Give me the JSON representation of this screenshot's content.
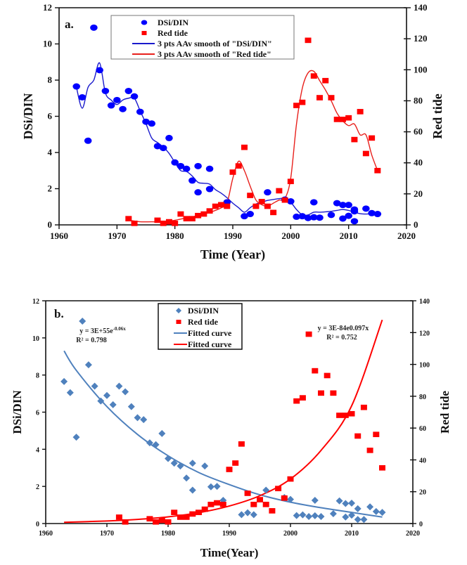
{
  "chart_data": [
    {
      "type": "scatter",
      "panel_label": "a.",
      "title": "",
      "xlabel": "Time (Year)",
      "ylabel": "DSi/DIN",
      "y2label": "Red tide",
      "xlim": [
        1960,
        2020
      ],
      "ylim": [
        0,
        12
      ],
      "y2lim": [
        0,
        140
      ],
      "x_ticks": [
        1960,
        1970,
        1980,
        1990,
        2000,
        2010,
        2020
      ],
      "y_ticks": [
        0,
        2,
        4,
        6,
        8,
        10,
        12
      ],
      "y2_ticks": [
        0,
        20,
        40,
        60,
        80,
        100,
        120,
        140
      ],
      "grid": false,
      "legend_position": "top-center",
      "legend": [
        {
          "label": "DSi/DIN",
          "marker": "circle",
          "color": "#0000ff"
        },
        {
          "label": "Red tide",
          "marker": "square",
          "color": "#ff0000"
        },
        {
          "label": "3 pts AAv smooth of \"DSi/DIN\"",
          "marker": "line",
          "color": "#1a1acc"
        },
        {
          "label": "3 pts AAv smooth of \"Red tide\"",
          "marker": "line",
          "color": "#e8201c"
        }
      ],
      "series": [
        {
          "name": "DSi/DIN",
          "axis": "left",
          "color": "#0000ff",
          "x": [
            1963,
            1964,
            1965,
            1966,
            1967,
            1968,
            1969,
            1970,
            1971,
            1972,
            1973,
            1974,
            1975,
            1976,
            1977,
            1978,
            1979,
            1980,
            1981,
            1982,
            1983,
            1984,
            1984,
            1986,
            1986,
            1989,
            1992,
            1993,
            1996,
            1999,
            2000,
            2001,
            2002,
            2003,
            2004,
            2004,
            2005,
            2007,
            2008,
            2009,
            2009,
            2010,
            2010,
            2011,
            2011,
            2011,
            2013,
            2014,
            2015
          ],
          "y": [
            7.65,
            7.05,
            4.65,
            10.9,
            8.55,
            7.4,
            6.6,
            6.9,
            6.4,
            7.4,
            7.1,
            6.25,
            5.7,
            5.6,
            4.35,
            4.25,
            4.8,
            3.45,
            3.25,
            3.1,
            2.45,
            1.8,
            3.25,
            3.1,
            1.98,
            1.25,
            0.48,
            0.6,
            1.8,
            1.4,
            1.3,
            0.45,
            0.48,
            0.38,
            0.42,
            1.25,
            0.4,
            0.55,
            1.2,
            1.1,
            0.35,
            1.1,
            0.5,
            0.85,
            0.75,
            0.2,
            0.9,
            0.65,
            0.6
          ]
        },
        {
          "name": "Red tide",
          "axis": "right",
          "color": "#ff0000",
          "x": [
            1972,
            1973,
            1977,
            1978,
            1979,
            1980,
            1981,
            1982,
            1983,
            1984,
            1985,
            1986,
            1987,
            1988,
            1989,
            1990,
            1991,
            1992,
            1993,
            1994,
            1995,
            1996,
            1997,
            1998,
            1999,
            2000,
            2001,
            2002,
            2003,
            2004,
            2005,
            2006,
            2007,
            2008,
            2009,
            2010,
            2011,
            2012,
            2013,
            2014,
            2015
          ],
          "y": [
            4,
            1,
            3,
            1,
            2,
            1,
            7,
            4,
            4,
            6,
            7,
            9,
            12,
            13,
            12,
            34,
            38,
            50,
            19,
            12,
            15,
            12,
            8,
            22,
            16,
            28,
            77,
            79,
            119,
            96,
            82,
            93,
            82,
            68,
            68,
            69,
            55,
            73,
            46,
            56,
            35
          ]
        },
        {
          "name": "3 pts AAv smooth of \"DSi/DIN\"",
          "axis": "left",
          "type": "line",
          "color": "#1a1acc",
          "x": [
            1963,
            1964,
            1965,
            1966,
            1967,
            1968,
            1969,
            1970,
            1971,
            1972,
            1973,
            1974,
            1975,
            1976,
            1977,
            1978,
            1979,
            1980,
            1981,
            1982,
            1983,
            1984,
            1985,
            1986,
            1987,
            1988,
            1989,
            1990,
            1991,
            1992,
            1993,
            1994,
            1995,
            1996,
            1997,
            1998,
            1999,
            2000,
            2001,
            2002,
            2003,
            2004,
            2005,
            2006,
            2007,
            2008,
            2009,
            2010,
            2011,
            2012,
            2013,
            2014,
            2015
          ],
          "y": [
            7.6,
            6.45,
            7.6,
            8.0,
            8.95,
            7.3,
            6.9,
            6.65,
            6.9,
            7.0,
            7.0,
            6.3,
            5.6,
            4.8,
            4.55,
            4.3,
            3.95,
            3.45,
            3.0,
            2.95,
            2.7,
            2.35,
            2.3,
            2.25,
            1.95,
            1.75,
            1.5,
            1.2,
            0.95,
            0.7,
            0.95,
            1.15,
            1.25,
            1.35,
            1.4,
            1.45,
            1.45,
            1.25,
            0.85,
            0.55,
            0.55,
            0.7,
            0.7,
            0.72,
            0.75,
            0.8,
            0.85,
            0.8,
            0.7,
            0.62,
            0.6,
            0.62,
            0.6
          ]
        },
        {
          "name": "3 pts AAv smooth of \"Red tide\"",
          "axis": "right",
          "type": "line",
          "color": "#e8201c",
          "x": [
            1972,
            1974,
            1976,
            1978,
            1980,
            1982,
            1984,
            1986,
            1988,
            1989,
            1990,
            1991,
            1992,
            1993,
            1994,
            1995,
            1996,
            1997,
            1998,
            1999,
            2000,
            2001,
            2002,
            2003,
            2004,
            2005,
            2006,
            2007,
            2008,
            2009,
            2010,
            2011,
            2012,
            2013,
            2014,
            2015
          ],
          "y": [
            3,
            2,
            2,
            2,
            3,
            4.5,
            6,
            8,
            11,
            14,
            30,
            41,
            35,
            25,
            16,
            13,
            12,
            14,
            16,
            17,
            30,
            65,
            88,
            98,
            99,
            93,
            87,
            80,
            72,
            67,
            64,
            65,
            58,
            58,
            45,
            35
          ]
        }
      ]
    },
    {
      "type": "scatter",
      "panel_label": "b.",
      "title": "",
      "xlabel": "Time(Year)",
      "ylabel": "DSi/DIN",
      "y2label": "Red tide",
      "xlim": [
        1960,
        2020
      ],
      "ylim": [
        0,
        12
      ],
      "y2lim": [
        0,
        140
      ],
      "x_ticks": [
        1960,
        1970,
        1980,
        1990,
        2000,
        2010,
        2020
      ],
      "y_ticks": [
        0,
        2,
        4,
        6,
        8,
        10,
        12
      ],
      "y2_ticks": [
        0,
        20,
        40,
        60,
        80,
        100,
        120,
        140
      ],
      "grid": false,
      "legend_position": "top-center",
      "legend": [
        {
          "label": "DSi/DIN",
          "marker": "diamond",
          "color": "#4f81bd"
        },
        {
          "label": "Red tide",
          "marker": "square",
          "color": "#ff0000"
        },
        {
          "label": "Fitted curve",
          "marker": "line",
          "color": "#4f81bd"
        },
        {
          "label": "Fitted curve",
          "marker": "line",
          "color": "#ff0000"
        }
      ],
      "annotations": [
        {
          "text": "y = 3E+55e",
          "superscript": "-0.06x",
          "position": "upper-left"
        },
        {
          "text": "R² = 0.798",
          "position": "upper-left"
        },
        {
          "text": "y = 3E-84e0.097x",
          "position": "upper-right"
        },
        {
          "text": "R² = 0.752",
          "position": "upper-right"
        }
      ],
      "series": [
        {
          "name": "DSi/DIN",
          "axis": "left",
          "color": "#4f81bd",
          "x": [
            1963,
            1964,
            1965,
            1966,
            1967,
            1968,
            1969,
            1970,
            1971,
            1972,
            1973,
            1974,
            1975,
            1976,
            1977,
            1978,
            1979,
            1980,
            1981,
            1982,
            1983,
            1984,
            1984,
            1986,
            1987,
            1988,
            1989,
            1992,
            1993,
            1994,
            1996,
            1999,
            2000,
            2001,
            2002,
            2003,
            2004,
            2004,
            2005,
            2007,
            2008,
            2009,
            2009,
            2010,
            2010,
            2011,
            2011,
            2012,
            2013,
            2014,
            2015
          ],
          "y": [
            7.65,
            7.05,
            4.65,
            10.9,
            8.55,
            7.4,
            6.6,
            6.9,
            6.4,
            7.4,
            7.1,
            6.3,
            5.7,
            5.6,
            4.35,
            4.25,
            4.85,
            3.5,
            3.25,
            3.1,
            2.45,
            1.8,
            3.25,
            3.1,
            1.98,
            2.0,
            1.25,
            0.48,
            0.58,
            0.48,
            1.8,
            1.4,
            1.3,
            0.43,
            0.47,
            0.38,
            0.42,
            1.25,
            0.38,
            0.53,
            1.22,
            1.08,
            0.35,
            1.1,
            0.45,
            0.8,
            0.22,
            0.22,
            0.9,
            0.65,
            0.6
          ]
        },
        {
          "name": "Red tide",
          "axis": "right",
          "color": "#ff0000",
          "x": [
            1972,
            1973,
            1977,
            1978,
            1979,
            1980,
            1981,
            1982,
            1983,
            1984,
            1985,
            1986,
            1987,
            1988,
            1989,
            1990,
            1991,
            1992,
            1993,
            1994,
            1995,
            1996,
            1997,
            1998,
            1999,
            2000,
            2001,
            2002,
            2003,
            2004,
            2005,
            2006,
            2007,
            2008,
            2009,
            2010,
            2011,
            2012,
            2013,
            2014,
            2015
          ],
          "y": [
            4,
            1,
            3,
            1,
            2,
            1,
            7,
            4,
            4,
            6,
            7,
            9,
            12,
            13,
            12,
            34,
            38,
            50,
            19,
            12,
            15,
            12,
            8,
            22,
            16,
            28,
            77,
            79,
            119,
            96,
            82,
            93,
            82,
            68,
            68,
            69,
            55,
            73,
            46,
            56,
            35
          ]
        },
        {
          "name": "Fitted curve (DSi/DIN)",
          "axis": "left",
          "type": "line",
          "color": "#4f81bd",
          "equation": "y = 3E+55e^(-0.06x)",
          "r_squared": 0.798,
          "x_range": [
            1963,
            2015
          ],
          "x": [
            1963,
            1965,
            1970,
            1975,
            1980,
            1985,
            1990,
            1995,
            2000,
            2005,
            2010,
            2015
          ],
          "y": [
            9.3,
            8.25,
            6.3,
            4.8,
            3.65,
            2.75,
            2.1,
            1.55,
            1.15,
            0.85,
            0.6,
            0.35
          ]
        },
        {
          "name": "Fitted curve (Red tide)",
          "axis": "right",
          "type": "line",
          "color": "#ff0000",
          "equation": "y = 3E-84e0.097x",
          "r_squared": 0.752,
          "x_range": [
            1963,
            2015
          ],
          "x": [
            1963,
            1970,
            1975,
            1980,
            1985,
            1990,
            1995,
            2000,
            2005,
            2010,
            2015
          ],
          "y": [
            0.8,
            1.6,
            2.6,
            4.2,
            6.8,
            11,
            17.5,
            28,
            46,
            74,
            128
          ]
        }
      ]
    }
  ]
}
